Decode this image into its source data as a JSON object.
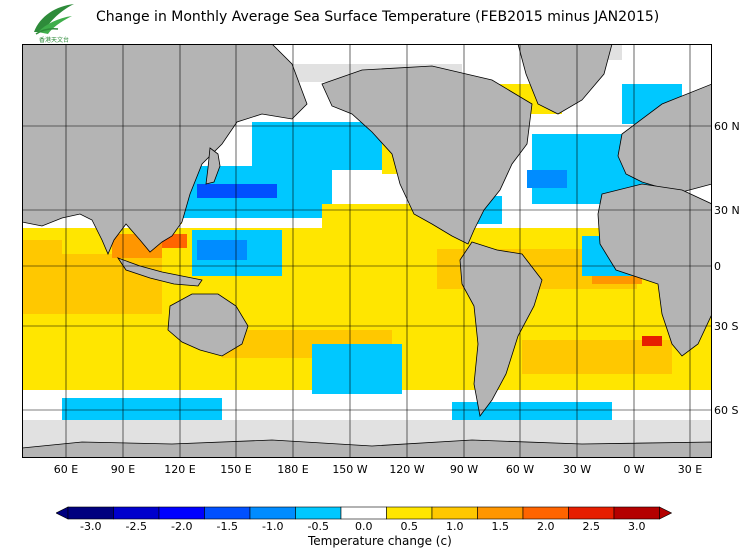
{
  "title": "Change in Monthly Average Sea Surface Temperature (FEB2015 minus JAN2015)",
  "logo": {
    "text": "香港天文台",
    "name": "Hong Kong Observatory logo"
  },
  "map": {
    "lat_labels": [
      "60 N",
      "30 N",
      "0",
      "30 S",
      "60 S"
    ],
    "lon_labels": [
      "60 E",
      "90 E",
      "120 E",
      "150 E",
      "180 E",
      "150 W",
      "120 W",
      "90 W",
      "60 W",
      "30 W",
      "0 W",
      "30 E"
    ],
    "colors": {
      "land": "#b4b4b4",
      "ice": "#e1e1e1",
      "ocean": "#ffffff"
    }
  },
  "colorbar": {
    "title": "Temperature change  (c)",
    "tick_labels": [
      "-3.0",
      "-2.5",
      "-2.0",
      "-1.5",
      "-1.0",
      "-0.5",
      "0.0",
      "0.5",
      "1.0",
      "1.5",
      "2.0",
      "2.5",
      "3.0"
    ],
    "colors": [
      "#00007f",
      "#0000cd",
      "#0000ff",
      "#0050ff",
      "#008cff",
      "#00c8ff",
      "#ffffff",
      "#ffe600",
      "#ffc800",
      "#ff9600",
      "#ff6400",
      "#e61e00",
      "#b40000"
    ]
  }
}
